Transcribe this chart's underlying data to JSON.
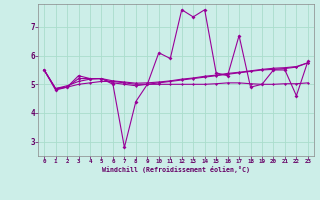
{
  "xlabel": "Windchill (Refroidissement éolien,°C)",
  "background_color": "#cceee8",
  "grid_color": "#aaddcc",
  "line_color": "#990099",
  "xlim": [
    -0.5,
    23.5
  ],
  "ylim": [
    2.5,
    7.8
  ],
  "yticks": [
    3,
    4,
    5,
    6,
    7
  ],
  "xticks": [
    0,
    1,
    2,
    3,
    4,
    5,
    6,
    7,
    8,
    9,
    10,
    11,
    12,
    13,
    14,
    15,
    16,
    17,
    18,
    19,
    20,
    21,
    22,
    23
  ],
  "series": [
    [
      5.5,
      4.8,
      4.9,
      5.3,
      5.2,
      5.2,
      5.0,
      2.8,
      4.4,
      5.0,
      6.1,
      5.9,
      7.6,
      7.35,
      7.6,
      5.4,
      5.3,
      6.7,
      4.9,
      5.0,
      5.5,
      5.5,
      4.6,
      5.8
    ],
    [
      5.5,
      4.85,
      4.9,
      5.2,
      5.2,
      5.2,
      5.05,
      5.0,
      4.95,
      5.0,
      5.05,
      5.1,
      5.15,
      5.2,
      5.25,
      5.3,
      5.35,
      5.4,
      5.45,
      5.5,
      5.52,
      5.55,
      5.6,
      5.75
    ],
    [
      5.5,
      4.85,
      4.9,
      5.0,
      5.05,
      5.1,
      5.1,
      5.05,
      5.0,
      5.0,
      5.0,
      5.0,
      5.0,
      5.0,
      5.0,
      5.02,
      5.05,
      5.05,
      5.02,
      5.0,
      5.0,
      5.02,
      5.02,
      5.05
    ],
    [
      5.5,
      4.85,
      4.95,
      5.1,
      5.18,
      5.2,
      5.12,
      5.08,
      5.04,
      5.05,
      5.08,
      5.12,
      5.18,
      5.22,
      5.28,
      5.32,
      5.38,
      5.42,
      5.47,
      5.52,
      5.56,
      5.58,
      5.62,
      5.75
    ]
  ]
}
